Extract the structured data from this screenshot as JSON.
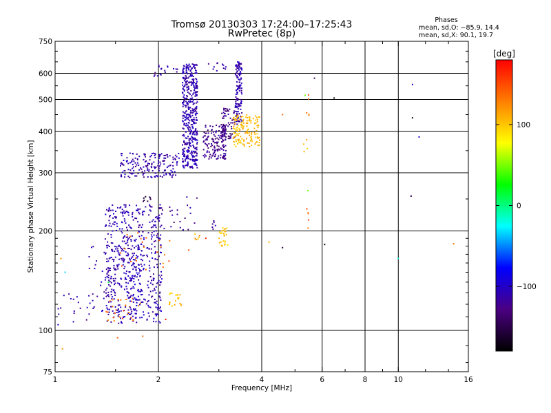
{
  "chart_data": {
    "type": "scatter",
    "title": "Tromsø 20130303 17:24:00–17:25:43",
    "subtitle": "RwPretec (8p)",
    "xlabel": "Frequency [MHz]",
    "ylabel": "Stationary phase Virtual Height [km]",
    "x_scale": "log",
    "y_scale": "log",
    "xlim": [
      1,
      16
    ],
    "ylim": [
      75,
      750
    ],
    "x_ticks": [
      1,
      2,
      4,
      6,
      8,
      10,
      16
    ],
    "y_ticks": [
      75,
      100,
      200,
      300,
      400,
      500,
      600,
      750
    ],
    "x_gridlines": [
      2,
      4,
      6,
      8,
      10
    ],
    "y_gridlines": [
      100,
      200,
      300,
      400,
      500,
      600
    ],
    "grid": true,
    "phase_stats": {
      "heading": "Phases",
      "line_o": "mean, sd,O: −85.9, 14.4",
      "line_x": "mean, sd,X:  90.1, 19.7"
    },
    "colorbar": {
      "label": "[deg]",
      "range": [
        -180,
        180
      ],
      "ticks": [
        100,
        0,
        -100
      ],
      "colors": [
        "#ff0000",
        "#ff7f00",
        "#ffff00",
        "#00ff00",
        "#00ffff",
        "#0000ff",
        "#4b0082",
        "#000000"
      ]
    },
    "series": [
      {
        "clusters": [
          {
            "x": [
              1.4,
              2.05
            ],
            "y": [
              105,
              240
            ],
            "phase": -110,
            "n": 560
          },
          {
            "x": [
              1.25,
              1.55
            ],
            "y": [
              112,
              180
            ],
            "phase": -110,
            "n": 40
          },
          {
            "x": [
              1.0,
              1.3
            ],
            "y": [
              103,
              130
            ],
            "phase": -115,
            "n": 18
          },
          {
            "x": [
              1.55,
              2.3
            ],
            "y": [
              290,
              345
            ],
            "phase": -112,
            "n": 180
          },
          {
            "x": [
              1.85,
              2.3
            ],
            "y": [
              588,
              640
            ],
            "phase": -115,
            "n": 18
          },
          {
            "x": [
              2.35,
              2.6
            ],
            "y": [
              310,
              640
            ],
            "phase": -110,
            "n": 460
          },
          {
            "x": [
              2.8,
              3.15
            ],
            "y": [
              610,
              645
            ],
            "phase": -118,
            "n": 12
          },
          {
            "x": [
              2.7,
              3.15
            ],
            "y": [
              330,
              420
            ],
            "phase": -125,
            "n": 150
          },
          {
            "x": [
              3.05,
              3.35
            ],
            "y": [
              380,
              470
            ],
            "phase": -128,
            "n": 70
          },
          {
            "x": [
              3.35,
              3.5
            ],
            "y": [
              420,
              650
            ],
            "phase": -110,
            "n": 140
          },
          {
            "x": [
              3.3,
              3.95
            ],
            "y": [
              360,
              450
            ],
            "phase": 105,
            "n": 140
          },
          {
            "x": [
              3.0,
              3.2
            ],
            "y": [
              180,
              205
            ],
            "phase": 100,
            "n": 28
          },
          {
            "x": [
              2.15,
              2.35
            ],
            "y": [
              118,
              130
            ],
            "phase": 100,
            "n": 20
          },
          {
            "x": [
              1.4,
              1.8
            ],
            "y": [
              105,
              125
            ],
            "phase": 135,
            "n": 28
          },
          {
            "x": [
              1.6,
              1.75
            ],
            "y": [
              115,
              180
            ],
            "phase": -100,
            "n": 40
          },
          {
            "x": [
              1.55,
              2.2
            ],
            "y": [
              150,
              200
            ],
            "phase": 140,
            "n": 22
          },
          {
            "x": [
              2.0,
              2.6
            ],
            "y": [
              200,
              260
            ],
            "phase": -120,
            "n": 24
          },
          {
            "x": [
              1.8,
              1.9
            ],
            "y": [
              245,
              255
            ],
            "phase": -150,
            "n": 8
          },
          {
            "x": [
              2.55,
              2.65
            ],
            "y": [
              185,
              200
            ],
            "phase": 110,
            "n": 6
          },
          {
            "x": [
              2.85,
              2.95
            ],
            "y": [
              195,
              215
            ],
            "phase": -120,
            "n": 6
          },
          {
            "x": [
              5.4,
              5.5
            ],
            "y": [
              420,
              520
            ],
            "phase": 140,
            "n": 5
          },
          {
            "x": [
              5.3,
              5.55
            ],
            "y": [
              340,
              400
            ],
            "phase": 105,
            "n": 4
          },
          {
            "x": [
              5.4,
              5.5
            ],
            "y": [
              200,
              240
            ],
            "phase": 140,
            "n": 5
          }
        ],
        "points": [
          {
            "x": 5.35,
            "y": 515,
            "phase": 45
          },
          {
            "x": 5.7,
            "y": 580,
            "phase": -150
          },
          {
            "x": 6.5,
            "y": 505,
            "phase": -175
          },
          {
            "x": 4.6,
            "y": 450,
            "phase": 150
          },
          {
            "x": 5.45,
            "y": 265,
            "phase": 30
          },
          {
            "x": 4.2,
            "y": 185,
            "phase": 110
          },
          {
            "x": 4.6,
            "y": 178,
            "phase": -150
          },
          {
            "x": 6.1,
            "y": 182,
            "phase": -175
          },
          {
            "x": 11.0,
            "y": 555,
            "phase": -110
          },
          {
            "x": 11.0,
            "y": 440,
            "phase": -175
          },
          {
            "x": 11.5,
            "y": 385,
            "phase": -110
          },
          {
            "x": 10.9,
            "y": 255,
            "phase": -150
          },
          {
            "x": 10.0,
            "y": 165,
            "phase": -20
          },
          {
            "x": 14.5,
            "y": 183,
            "phase": 140
          },
          {
            "x": 1.05,
            "y": 88,
            "phase": 120
          },
          {
            "x": 1.52,
            "y": 95,
            "phase": 130
          },
          {
            "x": 1.8,
            "y": 96,
            "phase": 140
          },
          {
            "x": 1.04,
            "y": 165,
            "phase": 110
          },
          {
            "x": 1.07,
            "y": 150,
            "phase": -30
          },
          {
            "x": 2.1,
            "y": 108,
            "phase": 150
          },
          {
            "x": 2.75,
            "y": 190,
            "phase": 150
          },
          {
            "x": 2.45,
            "y": 175,
            "phase": 150
          },
          {
            "x": 1.43,
            "y": 140,
            "phase": 10
          }
        ]
      }
    ]
  }
}
